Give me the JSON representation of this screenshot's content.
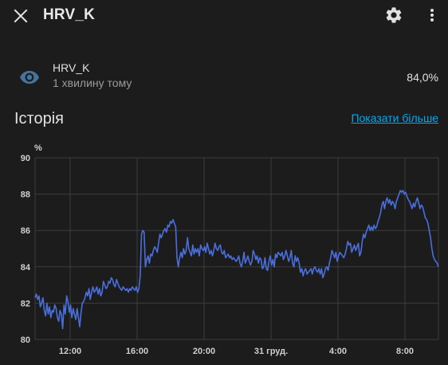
{
  "header": {
    "title": "HRV_K",
    "icons": {
      "close": "close-icon",
      "settings": "gear-icon",
      "more": "more-vert-icon"
    }
  },
  "entity": {
    "icon": "eye-icon",
    "name": "HRV_K",
    "time": "1 хвилину тому",
    "value": "84,0%"
  },
  "history": {
    "title": "Історія",
    "show_more": "Показати більше"
  },
  "colors": {
    "background": "#1c1c1c",
    "accent": "#03a9f4",
    "line": "#4a6fdc",
    "eye_icon": "#44739e"
  },
  "chart_data": {
    "type": "line",
    "ylabel": "%",
    "ylim": [
      80,
      90
    ],
    "y_ticks": [
      "80",
      "82",
      "84",
      "86",
      "88",
      "90"
    ],
    "x_tick_labels": [
      "12:00",
      "16:00",
      "20:00",
      "31 груд.",
      "4:00",
      "8:00"
    ],
    "grid": true,
    "series": [
      {
        "values": [
          82.3,
          82.5,
          82.2,
          82.4,
          81.8,
          82.0,
          82.3,
          81.6,
          81.3,
          82.0,
          81.4,
          81.8,
          81.2,
          81.6,
          81.5,
          81.9,
          81.7,
          81.2,
          81.0,
          81.6,
          81.4,
          80.6,
          81.9,
          81.4,
          82.4,
          82.1,
          81.5,
          81.9,
          81.2,
          81.7,
          81.4,
          81.1,
          81.7,
          81.2,
          80.7,
          81.5,
          82.0,
          82.1,
          82.3,
          82.6,
          82.4,
          82.8,
          82.2,
          82.6,
          82.9,
          82.6,
          82.7,
          82.9,
          82.5,
          82.8,
          82.4,
          82.6,
          83.2,
          83.0,
          82.8,
          82.9,
          83.2,
          83.1,
          83.4,
          83.3,
          83.0,
          82.9,
          83.3,
          83.1,
          82.9,
          82.8,
          82.7,
          82.9,
          82.8,
          82.7,
          82.8,
          82.6,
          82.8,
          82.7,
          82.9,
          82.8,
          82.7,
          82.9,
          82.6,
          82.8,
          83.5,
          85.8,
          86.0,
          85.9,
          84.0,
          84.4,
          84.6,
          84.2,
          84.7,
          84.6,
          84.9,
          85.1,
          85.0,
          84.8,
          85.3,
          85.8,
          85.6,
          85.8,
          86.0,
          86.1,
          85.9,
          86.3,
          86.2,
          86.5,
          86.4,
          86.6,
          86.4,
          86.2,
          84.5,
          84.0,
          84.5,
          84.8,
          84.5,
          85.0,
          84.7,
          84.9,
          85.6,
          85.0,
          84.8,
          84.6,
          85.2,
          84.7,
          85.0,
          84.8,
          85.0,
          84.6,
          85.2,
          85.0,
          84.9,
          85.1,
          84.8,
          85.3,
          85.0,
          84.7,
          84.9,
          84.6,
          84.9,
          85.3,
          85.0,
          84.9,
          85.1,
          85.2,
          84.8,
          84.7,
          84.9,
          84.5,
          84.6,
          84.7,
          84.5,
          84.6,
          84.4,
          84.5,
          84.4,
          84.3,
          84.4,
          84.6,
          84.2,
          84.0,
          84.3,
          84.8,
          84.2,
          84.4,
          84.6,
          84.3,
          84.1,
          84.3,
          84.9,
          84.7,
          84.4,
          84.6,
          84.2,
          84.5,
          84.4,
          83.9,
          84.0,
          84.5,
          83.9,
          83.8,
          84.3,
          84.6,
          84.1,
          84.4,
          84.0,
          84.7,
          84.5,
          84.8,
          84.7,
          84.6,
          84.8,
          84.4,
          84.6,
          84.9,
          84.6,
          84.3,
          84.5,
          84.9,
          84.2,
          84.0,
          84.6,
          84.3,
          84.5,
          84.2,
          83.7,
          83.9,
          83.5,
          83.8,
          83.9,
          83.6,
          83.7,
          83.8,
          83.9,
          83.6,
          83.9,
          84.0,
          83.8,
          83.7,
          83.9,
          83.6,
          83.9,
          83.4,
          83.6,
          83.9,
          84.0,
          83.8,
          84.2,
          84.5,
          84.9,
          84.7,
          84.5,
          84.8,
          84.3,
          84.6,
          84.8,
          84.7,
          84.6,
          84.5,
          84.7,
          85.0,
          85.4,
          85.2,
          85.3,
          84.8,
          85.0,
          85.2,
          84.9,
          85.1,
          85.3,
          84.6,
          84.8,
          85.4,
          85.8,
          85.6,
          85.9,
          86.1,
          86.3,
          86.0,
          86.2,
          86.0,
          86.3,
          86.1,
          86.2,
          86.5,
          86.7,
          87.0,
          87.4,
          87.6,
          87.2,
          87.6,
          87.8,
          87.5,
          87.7,
          87.4,
          87.6,
          87.5,
          87.2,
          87.6,
          87.8,
          88.0,
          88.2,
          88.1,
          88.2,
          88.0,
          88.1,
          87.9,
          87.7,
          87.6,
          87.4,
          87.2,
          87.5,
          87.3,
          87.6,
          87.8,
          87.5,
          87.2,
          87.4,
          87.3,
          87.0,
          86.7,
          86.6,
          86.4,
          86.0,
          85.6,
          85.0,
          84.6,
          84.4,
          84.3,
          84.2,
          84.0
        ]
      }
    ]
  }
}
